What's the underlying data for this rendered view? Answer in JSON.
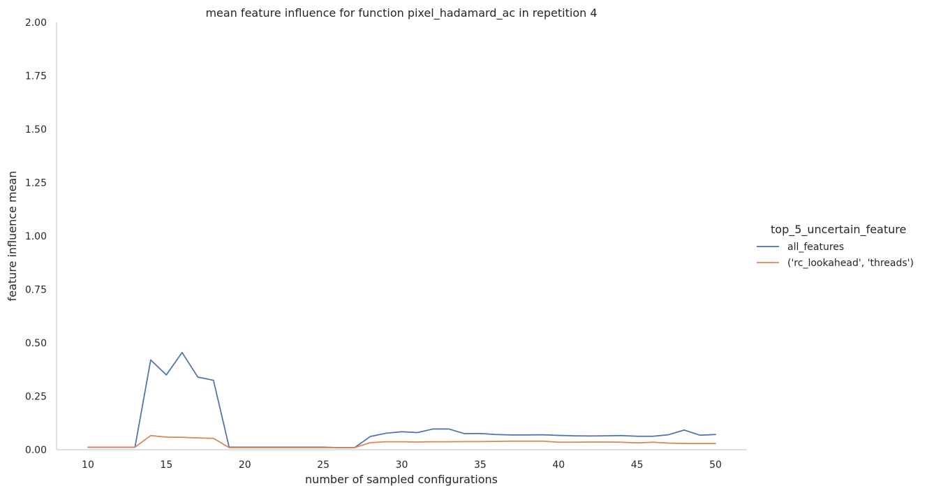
{
  "chart_data": {
    "type": "line",
    "title": "mean feature influence for function pixel_hadamard_ac in repetition 4",
    "xlabel": "number of sampled configurations",
    "ylabel": "feature influence mean",
    "xlim": [
      8,
      52
    ],
    "ylim": [
      0,
      2
    ],
    "xticks": [
      10,
      15,
      20,
      25,
      30,
      35,
      40,
      45,
      50
    ],
    "yticks": [
      0.0,
      0.25,
      0.5,
      0.75,
      1.0,
      1.25,
      1.5,
      1.75,
      2.0
    ],
    "ytick_labels": [
      "0.00",
      "0.25",
      "0.50",
      "0.75",
      "1.00",
      "1.25",
      "1.50",
      "1.75",
      "2.00"
    ],
    "grid": false,
    "legend": {
      "title": "top_5_uncertain_feature",
      "placement": "right"
    },
    "x": [
      10,
      11,
      12,
      13,
      14,
      15,
      16,
      17,
      18,
      19,
      20,
      21,
      22,
      23,
      24,
      25,
      26,
      27,
      28,
      29,
      30,
      31,
      32,
      33,
      34,
      35,
      36,
      37,
      38,
      39,
      40,
      41,
      42,
      43,
      44,
      45,
      46,
      47,
      48,
      49,
      50
    ],
    "series": [
      {
        "name": "all_features",
        "color": "#4c72b0",
        "values": [
          0.012,
          0.012,
          0.012,
          0.012,
          0.42,
          0.35,
          0.455,
          0.34,
          0.325,
          0.012,
          0.012,
          0.012,
          0.012,
          0.012,
          0.012,
          0.012,
          0.01,
          0.01,
          0.062,
          0.077,
          0.084,
          0.08,
          0.097,
          0.097,
          0.075,
          0.076,
          0.071,
          0.069,
          0.069,
          0.07,
          0.067,
          0.065,
          0.064,
          0.065,
          0.066,
          0.063,
          0.063,
          0.07,
          0.092,
          0.068,
          0.071
        ]
      },
      {
        "name": "('rc_lookahead', 'threads')",
        "color": "#dd8452",
        "values": [
          0.012,
          0.012,
          0.012,
          0.012,
          0.066,
          0.059,
          0.058,
          0.055,
          0.053,
          0.01,
          0.01,
          0.01,
          0.01,
          0.01,
          0.01,
          0.01,
          0.01,
          0.01,
          0.033,
          0.037,
          0.037,
          0.036,
          0.037,
          0.037,
          0.038,
          0.038,
          0.039,
          0.04,
          0.04,
          0.04,
          0.035,
          0.035,
          0.036,
          0.036,
          0.035,
          0.032,
          0.035,
          0.031,
          0.029,
          0.029,
          0.029
        ]
      }
    ]
  }
}
